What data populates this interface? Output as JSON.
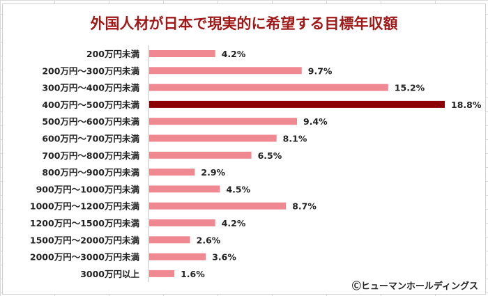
{
  "chart_data": {
    "type": "bar",
    "orientation": "horizontal",
    "title": "外国人材が日本で現実的に希望する目標年収額",
    "categories": [
      "200万円未満",
      "200万円～300万円未満",
      "300万円～400万円未満",
      "400万円～500万円未満",
      "500万円～600万円未満",
      "600万円～700万円未満",
      "700万円～800万円未満",
      "800万円～900万円未満",
      "900万円～1000万円未満",
      "1000万円～1200万円未満",
      "1200万円～1500万円未満",
      "1500万円～2000万円未満",
      "2000万円～3000万円未満",
      "3000万円以上"
    ],
    "values": [
      4.2,
      9.7,
      15.2,
      18.8,
      9.4,
      8.1,
      6.5,
      2.9,
      4.5,
      8.7,
      4.2,
      2.6,
      3.6,
      1.6
    ],
    "data_labels": [
      "4.2%",
      "9.7%",
      "15.2%",
      "18.8%",
      "9.4%",
      "8.1%",
      "6.5%",
      "2.9%",
      "4.5%",
      "8.7%",
      "4.2%",
      "2.6%",
      "3.6%",
      "1.6%"
    ],
    "unit": "%",
    "highlight_index": 3,
    "colors": {
      "bar": "#f08892",
      "highlight": "#8b0000",
      "title": "#a01818"
    },
    "grid": false,
    "legend": "none"
  },
  "credit": "Ⓒヒューマンホールディングス"
}
